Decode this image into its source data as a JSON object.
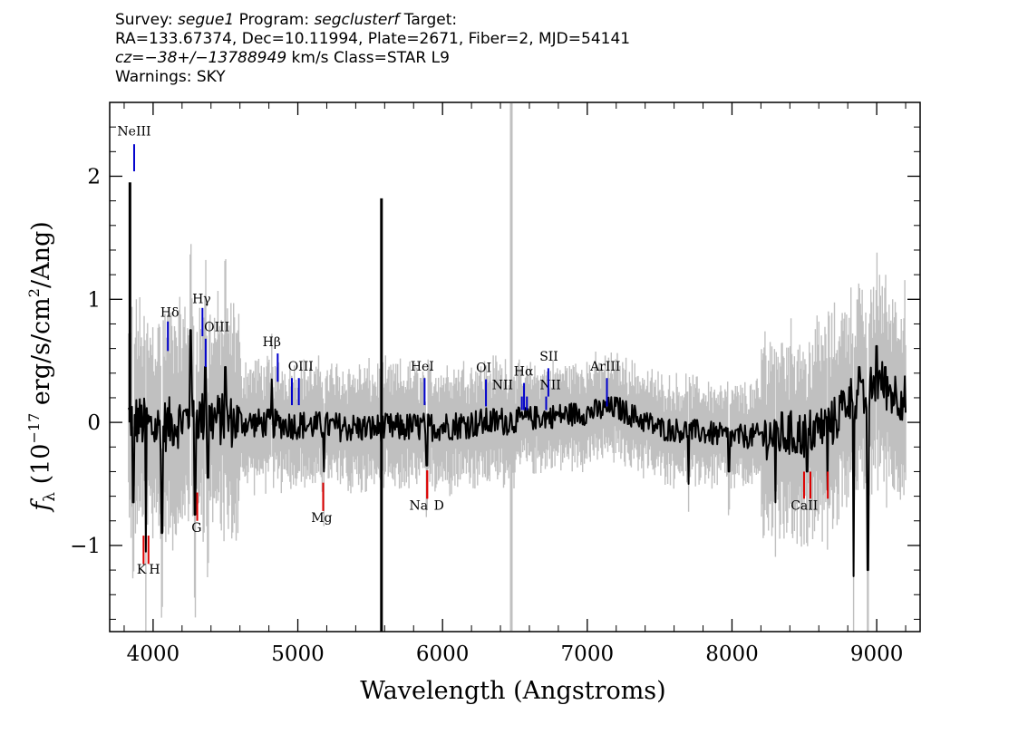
{
  "header": {
    "line1_survey_label": "Survey: ",
    "line1_survey": "segue1",
    "line1_program_label": " Program: ",
    "line1_program": "segclusterf",
    "line1_target_label": " Target:",
    "line2": "RA=133.67374, Dec=10.11994, Plate=2671, Fiber=2, MJD=54141",
    "line3_cz": "cz=−38+/−13788949",
    "line3_rest": " km/s Class=STAR L9",
    "line4": "Warnings: SKY"
  },
  "chart_data": {
    "type": "line",
    "xlabel": "Wavelength (Angstroms)",
    "ylabel": "fλ (10⁻¹⁷ erg/s/cm²/Ang)",
    "ylabel_parts": {
      "f": "f",
      "lambda": "λ",
      "paren_open": " (10",
      "exp1": "−17",
      "mid": " erg/s/cm",
      "exp2": "2",
      "tail": "/Ang)"
    },
    "xlim": [
      3700,
      9300
    ],
    "ylim": [
      -1.7,
      2.6
    ],
    "xticks": [
      4000,
      5000,
      6000,
      7000,
      8000,
      9000
    ],
    "xtick_labels": [
      "4000",
      "5000",
      "6000",
      "7000",
      "8000",
      "9000"
    ],
    "yticks": [
      -1,
      0,
      1,
      2
    ],
    "ytick_labels": [
      "−1",
      "0",
      "1",
      "2"
    ],
    "colors": {
      "flux": "#000000",
      "noise_band": "#c0c0c0",
      "emission": "#0000cc",
      "absorption": "#dd0000",
      "sky_line": "#c0c0c0"
    },
    "sky_line_x": 6475,
    "spikes": [
      {
        "x": 3840,
        "y0": 0.0,
        "y1": 1.95
      },
      {
        "x": 5578,
        "y0": -1.7,
        "y1": 1.82
      }
    ],
    "flux_anchor_x": [
      3830,
      4000,
      4300,
      4600,
      5000,
      5500,
      6000,
      6500,
      7000,
      7200,
      7500,
      7800,
      8000,
      8300,
      8500,
      8700,
      8800,
      8900,
      9000,
      9100,
      9200
    ],
    "flux_anchor_y": [
      0.05,
      -0.05,
      0.05,
      0.0,
      -0.02,
      -0.05,
      -0.03,
      0.02,
      0.08,
      0.12,
      -0.05,
      -0.08,
      -0.12,
      -0.1,
      -0.1,
      0.0,
      0.2,
      0.15,
      0.35,
      0.25,
      0.2
    ],
    "flux_dips": [
      {
        "x": 3865,
        "y": -0.65
      },
      {
        "x": 3950,
        "y": -1.05
      },
      {
        "x": 4060,
        "y": -0.9
      },
      {
        "x": 4290,
        "y": -0.75
      },
      {
        "x": 4380,
        "y": -0.45
      },
      {
        "x": 5180,
        "y": -0.4
      },
      {
        "x": 5890,
        "y": -0.35
      },
      {
        "x": 7700,
        "y": -0.5
      },
      {
        "x": 7980,
        "y": -0.4
      },
      {
        "x": 8300,
        "y": -0.65
      },
      {
        "x": 8520,
        "y": -0.4
      },
      {
        "x": 8660,
        "y": -0.55
      },
      {
        "x": 8840,
        "y": -1.25
      },
      {
        "x": 8940,
        "y": -1.2
      }
    ],
    "flux_peaks": [
      {
        "x": 4260,
        "y": 0.75
      },
      {
        "x": 4360,
        "y": 0.45
      },
      {
        "x": 4500,
        "y": 0.45
      },
      {
        "x": 4820,
        "y": 0.35
      },
      {
        "x": 9000,
        "y": 0.62
      },
      {
        "x": 9060,
        "y": 0.45
      },
      {
        "x": 8880,
        "y": 0.45
      }
    ],
    "emission_lines": [
      {
        "label": "NeIII",
        "x": 3869,
        "y0": 2.04,
        "y1": 2.26,
        "lx": 3869,
        "ly": 2.33
      },
      {
        "label": "Hδ",
        "x": 4102,
        "y0": 0.58,
        "y1": 0.82,
        "lx": 4115,
        "ly": 0.86
      },
      {
        "label": "Hγ",
        "x": 4341,
        "y0": 0.7,
        "y1": 0.93,
        "lx": 4335,
        "ly": 0.97
      },
      {
        "label": "OIII",
        "x": 4363,
        "y0": 0.45,
        "y1": 0.68,
        "lx": 4440,
        "ly": 0.74
      },
      {
        "label": "Hβ",
        "x": 4861,
        "y0": 0.33,
        "y1": 0.56,
        "lx": 4820,
        "ly": 0.62
      },
      {
        "label": "OIII",
        "x": 4959,
        "y0": 0.14,
        "y1": 0.36,
        "lx": 5020,
        "ly": 0.42
      },
      {
        "label": "OIII",
        "x": 5007,
        "y0": 0.14,
        "y1": 0.36,
        "lx": null,
        "ly": null
      },
      {
        "label": "HeI",
        "x": 5876,
        "y0": 0.14,
        "y1": 0.36,
        "lx": 5860,
        "ly": 0.42
      },
      {
        "label": "OI",
        "x": 6300,
        "y0": 0.13,
        "y1": 0.35,
        "lx": 6285,
        "ly": 0.41
      },
      {
        "label": "NII",
        "x": 6548,
        "y0": 0.1,
        "y1": 0.21,
        "lx": 6415,
        "ly": 0.27
      },
      {
        "label": "Hα",
        "x": 6563,
        "y0": 0.1,
        "y1": 0.32,
        "lx": 6560,
        "ly": 0.38
      },
      {
        "label": "NII",
        "x": 6583,
        "y0": 0.1,
        "y1": 0.21,
        "lx": null,
        "ly": null
      },
      {
        "label": "NII",
        "x": 6716,
        "y0": 0.1,
        "y1": 0.21,
        "lx": 6745,
        "ly": 0.27
      },
      {
        "label": "SII",
        "x": 6731,
        "y0": 0.21,
        "y1": 0.44,
        "lx": 6735,
        "ly": 0.5
      },
      {
        "label": "ArIII",
        "x": 7136,
        "y0": 0.13,
        "y1": 0.36,
        "lx": 7125,
        "ly": 0.42
      }
    ],
    "absorption_lines": [
      {
        "label": "K",
        "x": 3934,
        "y0": -1.15,
        "y1": -0.92,
        "lx": 3920,
        "ly": -1.23
      },
      {
        "label": "H",
        "x": 3968,
        "y0": -1.15,
        "y1": -0.92,
        "lx": 4010,
        "ly": -1.23
      },
      {
        "label": "G",
        "x": 4305,
        "y0": -0.8,
        "y1": -0.57,
        "lx": 4300,
        "ly": -0.89
      },
      {
        "label": "Mg",
        "x": 5175,
        "y0": -0.72,
        "y1": -0.49,
        "lx": 5165,
        "ly": -0.81
      },
      {
        "label": "Na",
        "x": 5894,
        "y0": -0.62,
        "y1": -0.39,
        "lx": 5835,
        "ly": -0.71
      },
      {
        "label": "D",
        "x": 5894,
        "y0": -0.62,
        "y1": -0.39,
        "lx": 5975,
        "ly": -0.71
      },
      {
        "label": "CaII",
        "x": 8498,
        "y0": -0.62,
        "y1": -0.4,
        "lx": 8500,
        "ly": -0.71
      },
      {
        "label": "CaII",
        "x": 8542,
        "y0": -0.62,
        "y1": -0.4,
        "lx": null,
        "ly": null
      },
      {
        "label": "CaII",
        "x": 8662,
        "y0": -0.62,
        "y1": -0.4,
        "lx": null,
        "ly": null
      }
    ]
  }
}
